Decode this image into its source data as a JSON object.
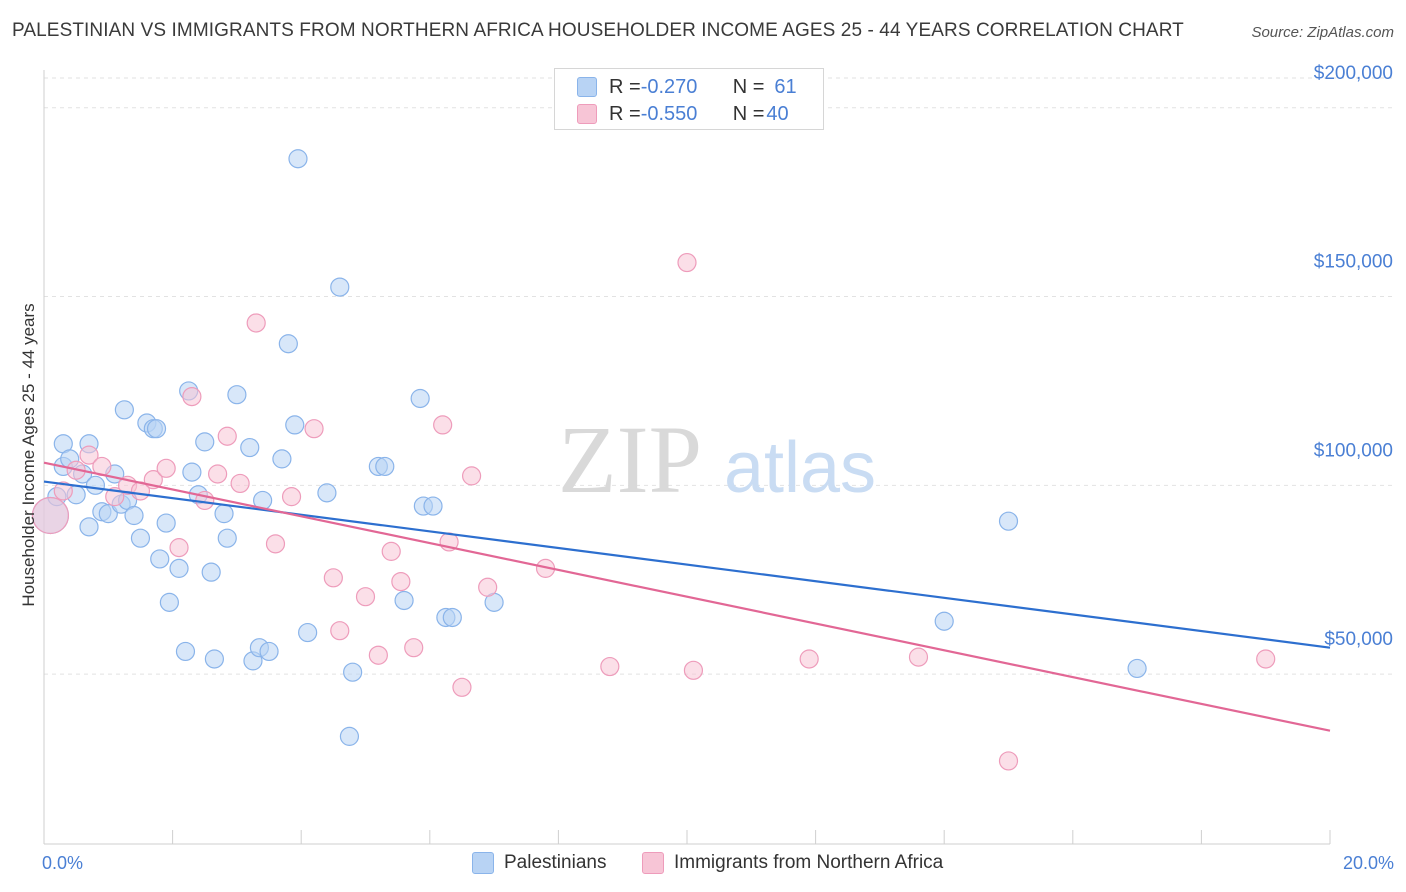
{
  "header": {
    "title": "PALESTINIAN VS IMMIGRANTS FROM NORTHERN AFRICA HOUSEHOLDER INCOME AGES 25 - 44 YEARS CORRELATION CHART",
    "source": "Source: ZipAtlas.com"
  },
  "watermark": {
    "zip": "ZIP",
    "atlas": "atlas"
  },
  "legend": {
    "rows": [
      {
        "r_label": "R = ",
        "r_value": "-0.270",
        "n_label": "N = ",
        "n_value": "61"
      },
      {
        "r_label": "R = ",
        "r_value": "-0.550",
        "n_label": "N = ",
        "n_value": "40"
      }
    ]
  },
  "colors": {
    "blue_fill": "#b8d3f4",
    "blue_stroke": "#8ab4ea",
    "blue_line": "#2d6fcf",
    "pink_fill": "#f7c5d6",
    "pink_stroke": "#ee9cbb",
    "pink_line": "#e26795",
    "grid": "#e2e2e2",
    "axis_label": "#4a7fd4"
  },
  "chart_data": {
    "type": "scatter",
    "title": "PALESTINIAN VS IMMIGRANTS FROM NORTHERN AFRICA HOUSEHOLDER INCOME AGES 25 - 44 YEARS CORRELATION CHART",
    "xlabel": "",
    "ylabel": "Householder Income Ages 25 - 44 years",
    "xlim": [
      0,
      20
    ],
    "ylim": [
      5000,
      210000
    ],
    "x_tick_labels": [
      {
        "value": 0,
        "label": "0.0%"
      },
      {
        "value": 20,
        "label": "20.0%"
      }
    ],
    "y_ticks": [
      {
        "value": 50000,
        "label": "$50,000"
      },
      {
        "value": 100000,
        "label": "$100,000"
      },
      {
        "value": 150000,
        "label": "$150,000"
      },
      {
        "value": 200000,
        "label": "$200,000"
      }
    ],
    "grid": "horizontal dashed",
    "legend_position": "bottom",
    "series": [
      {
        "name": "Palestinians",
        "R": -0.27,
        "N": 61,
        "trend": {
          "x": [
            0,
            20
          ],
          "y": [
            101000,
            57000
          ]
        },
        "points": [
          [
            0.1,
            92000
          ],
          [
            0.2,
            97000
          ],
          [
            0.3,
            105000
          ],
          [
            0.3,
            111000
          ],
          [
            0.4,
            107000
          ],
          [
            0.5,
            97500
          ],
          [
            0.6,
            103000
          ],
          [
            0.7,
            111000
          ],
          [
            0.7,
            89000
          ],
          [
            0.8,
            100000
          ],
          [
            0.9,
            93000
          ],
          [
            1.0,
            92500
          ],
          [
            1.1,
            103000
          ],
          [
            1.2,
            95000
          ],
          [
            1.25,
            120000
          ],
          [
            1.3,
            96000
          ],
          [
            1.4,
            92000
          ],
          [
            1.5,
            86000
          ],
          [
            1.6,
            116500
          ],
          [
            1.7,
            115000
          ],
          [
            1.75,
            115000
          ],
          [
            1.8,
            80500
          ],
          [
            1.9,
            90000
          ],
          [
            1.95,
            69000
          ],
          [
            2.1,
            78000
          ],
          [
            2.2,
            56000
          ],
          [
            2.25,
            125000
          ],
          [
            2.3,
            103500
          ],
          [
            2.4,
            97500
          ],
          [
            2.5,
            111500
          ],
          [
            2.6,
            77000
          ],
          [
            2.65,
            54000
          ],
          [
            2.8,
            92500
          ],
          [
            2.85,
            86000
          ],
          [
            3.0,
            124000
          ],
          [
            3.2,
            110000
          ],
          [
            3.25,
            53500
          ],
          [
            3.35,
            57000
          ],
          [
            3.4,
            96000
          ],
          [
            3.5,
            56000
          ],
          [
            3.7,
            107000
          ],
          [
            3.8,
            137500
          ],
          [
            3.9,
            116000
          ],
          [
            3.95,
            186500
          ],
          [
            4.1,
            61000
          ],
          [
            4.4,
            98000
          ],
          [
            4.6,
            152500
          ],
          [
            4.75,
            33500
          ],
          [
            4.8,
            50500
          ],
          [
            5.2,
            105000
          ],
          [
            5.3,
            105000
          ],
          [
            5.6,
            69500
          ],
          [
            5.85,
            123000
          ],
          [
            5.9,
            94500
          ],
          [
            6.05,
            94500
          ],
          [
            6.25,
            65000
          ],
          [
            6.35,
            65000
          ],
          [
            7.0,
            69000
          ],
          [
            14.0,
            64000
          ],
          [
            15.0,
            90500
          ],
          [
            17.0,
            51500
          ]
        ]
      },
      {
        "name": "Immigrants from Northern Africa",
        "R": -0.55,
        "N": 40,
        "trend": {
          "x": [
            0,
            20
          ],
          "y": [
            106000,
            35000
          ]
        },
        "points": [
          [
            0.1,
            92000
          ],
          [
            0.3,
            98500
          ],
          [
            0.5,
            104000
          ],
          [
            0.7,
            108000
          ],
          [
            0.9,
            105000
          ],
          [
            1.1,
            97000
          ],
          [
            1.3,
            100000
          ],
          [
            1.5,
            98500
          ],
          [
            1.7,
            101500
          ],
          [
            1.9,
            104500
          ],
          [
            2.1,
            83500
          ],
          [
            2.3,
            123500
          ],
          [
            2.5,
            96000
          ],
          [
            2.7,
            103000
          ],
          [
            2.85,
            113000
          ],
          [
            3.05,
            100500
          ],
          [
            3.3,
            143000
          ],
          [
            3.6,
            84500
          ],
          [
            3.85,
            97000
          ],
          [
            4.2,
            115000
          ],
          [
            4.5,
            75500
          ],
          [
            4.6,
            61500
          ],
          [
            5.0,
            70500
          ],
          [
            5.2,
            55000
          ],
          [
            5.4,
            82500
          ],
          [
            5.55,
            74500
          ],
          [
            5.75,
            57000
          ],
          [
            6.2,
            116000
          ],
          [
            6.3,
            85000
          ],
          [
            6.5,
            46500
          ],
          [
            6.65,
            102500
          ],
          [
            6.9,
            73000
          ],
          [
            7.8,
            78000
          ],
          [
            8.8,
            52000
          ],
          [
            10.0,
            159000
          ],
          [
            10.1,
            51000
          ],
          [
            11.9,
            54000
          ],
          [
            13.6,
            54500
          ],
          [
            15.0,
            27000
          ],
          [
            19.0,
            54000
          ]
        ]
      }
    ]
  }
}
